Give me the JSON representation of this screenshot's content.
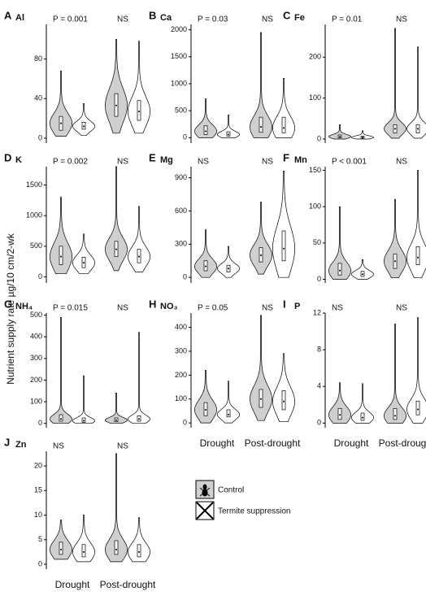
{
  "ylabel": "Nutrient supply rate µg/10 cm/2-wk",
  "legend": {
    "series": [
      {
        "name": "Control",
        "color": "#cfcfcf"
      },
      {
        "name": "Termite suppression",
        "color": "#ffffff"
      }
    ]
  },
  "chart_data": [
    {
      "type": "violin",
      "label": "A",
      "title": "Al",
      "annotations": [
        "P = 0.001",
        "NS"
      ],
      "categories": [
        null,
        null
      ],
      "ylim": [
        -5,
        115
      ],
      "yticks": [
        0,
        40,
        80
      ],
      "series": [
        {
          "min": [
            2,
            5
          ],
          "q1": [
            8,
            22
          ],
          "median": [
            15,
            33
          ],
          "q3": [
            22,
            45
          ],
          "max": [
            68,
            100
          ]
        },
        {
          "min": [
            3,
            5
          ],
          "q1": [
            9,
            18
          ],
          "median": [
            12,
            27
          ],
          "q3": [
            16,
            38
          ],
          "max": [
            35,
            98
          ]
        }
      ]
    },
    {
      "type": "violin",
      "label": "B",
      "title": "Ca",
      "annotations": [
        "P = 0.03",
        "NS"
      ],
      "categories": [
        null,
        null
      ],
      "ylim": [
        -100,
        2100
      ],
      "yticks": [
        0,
        500,
        1000,
        1500,
        2000
      ],
      "series": [
        {
          "min": [
            0,
            0
          ],
          "q1": [
            60,
            100
          ],
          "median": [
            120,
            200
          ],
          "q3": [
            220,
            380
          ],
          "max": [
            720,
            1950
          ]
        },
        {
          "min": [
            0,
            0
          ],
          "q1": [
            30,
            90
          ],
          "median": [
            60,
            180
          ],
          "q3": [
            110,
            380
          ],
          "max": [
            420,
            1100
          ]
        }
      ]
    },
    {
      "type": "violin",
      "label": "C",
      "title": "Fe",
      "annotations": [
        "P = 0.01",
        "NS"
      ],
      "categories": [
        null,
        null
      ],
      "ylim": [
        -10,
        280
      ],
      "yticks": [
        0,
        100,
        200
      ],
      "series": [
        {
          "min": [
            0,
            2
          ],
          "q1": [
            3,
            15
          ],
          "median": [
            6,
            25
          ],
          "q3": [
            10,
            35
          ],
          "max": [
            35,
            270
          ]
        },
        {
          "min": [
            0,
            2
          ],
          "q1": [
            2,
            15
          ],
          "median": [
            4,
            25
          ],
          "q3": [
            7,
            35
          ],
          "max": [
            20,
            225
          ]
        }
      ]
    },
    {
      "type": "violin",
      "label": "D",
      "title": "K",
      "annotations": [
        "P = 0.002",
        "NS"
      ],
      "categories": [
        null,
        null
      ],
      "ylim": [
        -100,
        1800
      ],
      "yticks": [
        0,
        500,
        1000,
        1500
      ],
      "series": [
        {
          "min": [
            50,
            100
          ],
          "q1": [
            200,
            330
          ],
          "median": [
            330,
            450
          ],
          "q3": [
            500,
            580
          ],
          "max": [
            1300,
            1800
          ]
        },
        {
          "min": [
            50,
            80
          ],
          "q1": [
            150,
            230
          ],
          "median": [
            230,
            330
          ],
          "q3": [
            320,
            450
          ],
          "max": [
            700,
            1150
          ]
        }
      ]
    },
    {
      "type": "violin",
      "label": "E",
      "title": "Mg",
      "annotations": [
        "NS",
        "NS"
      ],
      "categories": [
        null,
        null
      ],
      "ylim": [
        -50,
        1000
      ],
      "yticks": [
        0,
        300,
        600,
        900
      ],
      "series": [
        {
          "min": [
            0,
            30
          ],
          "q1": [
            60,
            140
          ],
          "median": [
            100,
            200
          ],
          "q3": [
            150,
            270
          ],
          "max": [
            430,
            680
          ]
        },
        {
          "min": [
            0,
            0
          ],
          "q1": [
            50,
            150
          ],
          "median": [
            80,
            260
          ],
          "q3": [
            110,
            420
          ],
          "max": [
            280,
            960
          ]
        }
      ]
    },
    {
      "type": "violin",
      "label": "F",
      "title": "Mn",
      "annotations": [
        "P < 0.001",
        "NS"
      ],
      "categories": [
        null,
        null
      ],
      "ylim": [
        -5,
        155
      ],
      "yticks": [
        0,
        50,
        100,
        150
      ],
      "series": [
        {
          "min": [
            0,
            2
          ],
          "q1": [
            6,
            15
          ],
          "median": [
            12,
            25
          ],
          "q3": [
            22,
            35
          ],
          "max": [
            100,
            110
          ]
        },
        {
          "min": [
            0,
            2
          ],
          "q1": [
            4,
            20
          ],
          "median": [
            7,
            30
          ],
          "q3": [
            11,
            45
          ],
          "max": [
            27,
            150
          ]
        }
      ]
    },
    {
      "type": "violin",
      "label": "G",
      "title": "NH₄",
      "annotations": [
        "P = 0.015",
        "NS"
      ],
      "categories": [
        null,
        null
      ],
      "ylim": [
        -20,
        510
      ],
      "yticks": [
        0,
        100,
        200,
        300,
        400,
        500
      ],
      "series": [
        {
          "min": [
            0,
            0
          ],
          "q1": [
            10,
            8
          ],
          "median": [
            20,
            15
          ],
          "q3": [
            40,
            25
          ],
          "max": [
            490,
            140
          ]
        },
        {
          "min": [
            0,
            0
          ],
          "q1": [
            5,
            10
          ],
          "median": [
            12,
            20
          ],
          "q3": [
            25,
            35
          ],
          "max": [
            220,
            420
          ]
        }
      ]
    },
    {
      "type": "violin",
      "label": "H",
      "title": "NO₃",
      "annotations": [
        "P = 0.05",
        "NS"
      ],
      "categories": [
        "Drought",
        "Post-drought"
      ],
      "ylim": [
        -20,
        460
      ],
      "yticks": [
        0,
        100,
        200,
        300,
        400
      ],
      "series": [
        {
          "min": [
            0,
            10
          ],
          "q1": [
            30,
            65
          ],
          "median": [
            55,
            100
          ],
          "q3": [
            85,
            140
          ],
          "max": [
            220,
            450
          ]
        },
        {
          "min": [
            0,
            5
          ],
          "q1": [
            25,
            55
          ],
          "median": [
            35,
            90
          ],
          "q3": [
            55,
            135
          ],
          "max": [
            175,
            290
          ]
        }
      ]
    },
    {
      "type": "violin",
      "label": "I",
      "title": "P",
      "annotations": [
        "NS",
        "NS"
      ],
      "categories": [
        "Drought",
        "Post-drought"
      ],
      "ylim": [
        -0.5,
        12
      ],
      "yticks": [
        0,
        4,
        8,
        12
      ],
      "series": [
        {
          "min": [
            0,
            0
          ],
          "q1": [
            0.4,
            0.4
          ],
          "median": [
            0.9,
            0.8
          ],
          "q3": [
            1.6,
            1.6
          ],
          "max": [
            4.4,
            10.8
          ]
        },
        {
          "min": [
            0,
            0
          ],
          "q1": [
            0.3,
            0.9
          ],
          "median": [
            0.6,
            1.5
          ],
          "q3": [
            1.1,
            2.4
          ],
          "max": [
            4.3,
            11.5
          ]
        }
      ]
    },
    {
      "type": "violin",
      "label": "J",
      "title": "Zn",
      "annotations": [
        "NS",
        "NS"
      ],
      "categories": [
        "Drought",
        "Post-drought"
      ],
      "ylim": [
        -1,
        23
      ],
      "yticks": [
        0,
        5,
        10,
        15,
        20
      ],
      "series": [
        {
          "min": [
            1,
            0.5
          ],
          "q1": [
            2,
            2
          ],
          "median": [
            3,
            3
          ],
          "q3": [
            4.5,
            4.8
          ],
          "max": [
            9,
            22.5
          ]
        },
        {
          "min": [
            0.5,
            0.5
          ],
          "q1": [
            1.5,
            1.5
          ],
          "median": [
            2.5,
            2.5
          ],
          "q3": [
            4,
            4
          ],
          "max": [
            10,
            9.5
          ]
        }
      ]
    }
  ]
}
